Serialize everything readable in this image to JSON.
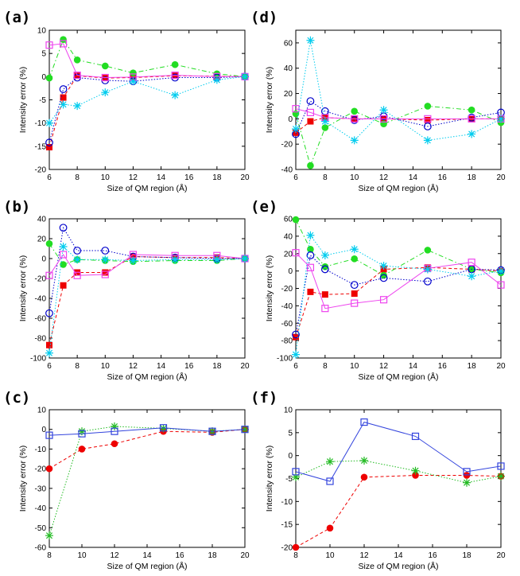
{
  "chart_data": [
    {
      "panel": "(a)",
      "type": "line",
      "xlabel": "Size of QM region (Å)",
      "ylabel": "Intensity error (%)",
      "xlim": [
        6,
        20
      ],
      "ylim": [
        -20,
        10
      ],
      "xticks": [
        6,
        8,
        10,
        12,
        14,
        16,
        18,
        20
      ],
      "yticks": [
        -20,
        -15,
        -10,
        -5,
        0,
        5,
        10
      ],
      "series": [
        {
          "color": "#ee0000",
          "marker": "filled-square",
          "dash": "dashed",
          "x": [
            6,
            7,
            8,
            10,
            12,
            15,
            18,
            20
          ],
          "y": [
            -15.2,
            -4.5,
            0.2,
            -0.3,
            -0.2,
            0.2,
            0.1,
            0
          ]
        },
        {
          "color": "#22dd22",
          "marker": "filled-circle",
          "dash": "dashdot",
          "x": [
            6,
            7,
            8,
            10,
            12,
            15,
            18,
            20
          ],
          "y": [
            -0.3,
            8,
            3.6,
            2.3,
            0.8,
            2.6,
            0.6,
            0
          ]
        },
        {
          "color": "#0000cc",
          "marker": "open-circle",
          "dash": "dotted",
          "x": [
            6,
            7,
            8,
            10,
            12,
            15,
            18,
            20
          ],
          "y": [
            -14.2,
            -2.7,
            -0.2,
            -0.8,
            -1,
            -0.2,
            -0.2,
            0
          ]
        },
        {
          "color": "#ee44ee",
          "marker": "open-square",
          "dash": "solid",
          "x": [
            6,
            7,
            8,
            10,
            12,
            15,
            18,
            20
          ],
          "y": [
            6.8,
            7.1,
            0.3,
            -0.2,
            -0.1,
            0.3,
            0,
            0
          ]
        },
        {
          "color": "#00ccee",
          "marker": "asterisk",
          "dash": "dotted",
          "x": [
            6,
            7,
            8,
            10,
            12,
            15,
            18,
            20
          ],
          "y": [
            -10,
            -6,
            -6.3,
            -3.4,
            -1,
            -4,
            -0.7,
            0
          ]
        }
      ]
    },
    {
      "panel": "(d)",
      "type": "line",
      "xlabel": "Size of QM region (Å)",
      "ylabel": "Intensity error (%)",
      "xlim": [
        6,
        20
      ],
      "ylim": [
        -40,
        70
      ],
      "xticks": [
        6,
        8,
        10,
        12,
        14,
        16,
        18,
        20
      ],
      "yticks": [
        -40,
        -20,
        0,
        20,
        40,
        60
      ],
      "series": [
        {
          "color": "#ee0000",
          "marker": "filled-square",
          "dash": "dashed",
          "x": [
            6,
            7,
            8,
            10,
            12,
            15,
            18,
            20
          ],
          "y": [
            -11,
            -2,
            1,
            0,
            0,
            -1,
            0,
            0
          ]
        },
        {
          "color": "#22dd22",
          "marker": "filled-circle",
          "dash": "dashdot",
          "x": [
            6,
            7,
            8,
            10,
            12,
            15,
            18,
            20
          ],
          "y": [
            4,
            -37,
            -7,
            6,
            -4,
            10,
            7,
            -3
          ]
        },
        {
          "color": "#0000cc",
          "marker": "open-circle",
          "dash": "dotted",
          "x": [
            6,
            7,
            8,
            10,
            12,
            15,
            18,
            20
          ],
          "y": [
            -12,
            14,
            6,
            -1,
            2,
            -6,
            1,
            5
          ]
        },
        {
          "color": "#ee44ee",
          "marker": "open-square",
          "dash": "solid",
          "x": [
            6,
            7,
            8,
            10,
            12,
            15,
            18,
            20
          ],
          "y": [
            8,
            5,
            1,
            0,
            0,
            0,
            0,
            0
          ]
        },
        {
          "color": "#00ccee",
          "marker": "asterisk",
          "dash": "dotted",
          "x": [
            6,
            7,
            8,
            10,
            12,
            15,
            18,
            20
          ],
          "y": [
            -8,
            62,
            -2,
            -17,
            7,
            -17,
            -12,
            0
          ]
        }
      ]
    },
    {
      "panel": "(b)",
      "type": "line",
      "xlabel": "Size of QM region (Å)",
      "ylabel": "Intensity error (%)",
      "xlim": [
        6,
        20
      ],
      "ylim": [
        -100,
        40
      ],
      "xticks": [
        6,
        8,
        10,
        12,
        14,
        16,
        18,
        20
      ],
      "yticks": [
        -100,
        -80,
        -60,
        -40,
        -20,
        0,
        20,
        40
      ],
      "series": [
        {
          "color": "#ee0000",
          "marker": "filled-square",
          "dash": "dashed",
          "x": [
            6,
            7,
            8,
            10,
            12,
            15,
            18,
            20
          ],
          "y": [
            -87,
            -27,
            -14,
            -14,
            2,
            1,
            1,
            0
          ]
        },
        {
          "color": "#22dd22",
          "marker": "filled-circle",
          "dash": "dashdot",
          "x": [
            6,
            7,
            8,
            10,
            12,
            15,
            18,
            20
          ],
          "y": [
            15,
            -6,
            -1,
            -2,
            -3,
            -2,
            -2,
            0
          ]
        },
        {
          "color": "#0000cc",
          "marker": "open-circle",
          "dash": "dotted",
          "x": [
            6,
            7,
            8,
            10,
            12,
            15,
            18,
            20
          ],
          "y": [
            -55,
            31,
            8,
            8,
            2,
            1,
            0,
            0
          ]
        },
        {
          "color": "#ee44ee",
          "marker": "open-square",
          "dash": "solid",
          "x": [
            6,
            7,
            8,
            10,
            12,
            15,
            18,
            20
          ],
          "y": [
            -17,
            4,
            -17,
            -16,
            4,
            3,
            3,
            0
          ]
        },
        {
          "color": "#00ccee",
          "marker": "asterisk",
          "dash": "dotted",
          "x": [
            6,
            7,
            8,
            10,
            12,
            15,
            18,
            20
          ],
          "y": [
            -95,
            12,
            -1,
            -1,
            -2,
            -1,
            -1,
            0
          ]
        }
      ]
    },
    {
      "panel": "(e)",
      "type": "line",
      "xlabel": "Size of QM region (Å)",
      "ylabel": "Intensity error (%)",
      "xlim": [
        6,
        20
      ],
      "ylim": [
        -100,
        60
      ],
      "xticks": [
        6,
        8,
        10,
        12,
        14,
        16,
        18,
        20
      ],
      "yticks": [
        -100,
        -80,
        -60,
        -40,
        -20,
        0,
        20,
        40,
        60
      ],
      "series": [
        {
          "color": "#ee0000",
          "marker": "filled-square",
          "dash": "dashed",
          "x": [
            6,
            7,
            8,
            10,
            12,
            15,
            18,
            20
          ],
          "y": [
            -76,
            -24,
            -27,
            -26,
            2,
            4,
            2,
            0
          ]
        },
        {
          "color": "#22dd22",
          "marker": "filled-circle",
          "dash": "dashdot",
          "x": [
            6,
            7,
            8,
            10,
            12,
            15,
            18,
            20
          ],
          "y": [
            59,
            25,
            5,
            14,
            -5,
            24,
            2,
            -2
          ]
        },
        {
          "color": "#0000cc",
          "marker": "open-circle",
          "dash": "dotted",
          "x": [
            6,
            7,
            8,
            10,
            12,
            15,
            18,
            20
          ],
          "y": [
            -73,
            18,
            2,
            -16,
            -8,
            -12,
            2,
            1
          ]
        },
        {
          "color": "#ee44ee",
          "marker": "open-square",
          "dash": "solid",
          "x": [
            6,
            7,
            8,
            10,
            12,
            15,
            18,
            20
          ],
          "y": [
            21,
            4,
            -43,
            -37,
            -33,
            3,
            10,
            -16
          ]
        },
        {
          "color": "#00ccee",
          "marker": "asterisk",
          "dash": "dotted",
          "x": [
            6,
            7,
            8,
            10,
            12,
            15,
            18,
            20
          ],
          "y": [
            -96,
            41,
            18,
            25,
            6,
            2,
            -6,
            0
          ]
        }
      ]
    },
    {
      "panel": "(c)",
      "type": "line",
      "xlabel": "Size of QM region (Å)",
      "ylabel": "Intensity error (%)",
      "xlim": [
        8,
        20
      ],
      "ylim": [
        -60,
        10
      ],
      "xticks": [
        8,
        10,
        12,
        14,
        16,
        18,
        20
      ],
      "yticks": [
        -60,
        -50,
        -40,
        -30,
        -20,
        -10,
        0,
        10
      ],
      "series": [
        {
          "color": "#ee0000",
          "marker": "filled-circle",
          "dash": "dashed",
          "x": [
            8,
            10,
            12,
            15,
            18,
            20
          ],
          "y": [
            -20,
            -10,
            -7.3,
            -1,
            -1.5,
            0
          ]
        },
        {
          "color": "#22bb22",
          "marker": "asterisk",
          "dash": "dotted",
          "x": [
            8,
            10,
            12,
            15,
            18,
            20
          ],
          "y": [
            -54,
            -1,
            1.5,
            0.5,
            -1,
            0
          ]
        },
        {
          "color": "#3344dd",
          "marker": "open-square",
          "dash": "solid",
          "x": [
            8,
            10,
            12,
            15,
            18,
            20
          ],
          "y": [
            -3,
            -2.2,
            -1,
            0.8,
            -1,
            0
          ]
        }
      ]
    },
    {
      "panel": "(f)",
      "type": "line",
      "xlabel": "Size of QM region (Å)",
      "ylabel": "Intensity error (%)",
      "xlim": [
        8,
        20
      ],
      "ylim": [
        -20,
        10
      ],
      "xticks": [
        8,
        10,
        12,
        14,
        16,
        18,
        20
      ],
      "yticks": [
        -20,
        -15,
        -10,
        -5,
        0,
        5,
        10
      ],
      "series": [
        {
          "color": "#ee0000",
          "marker": "filled-circle",
          "dash": "dashed",
          "x": [
            8,
            10,
            12,
            15,
            18,
            20
          ],
          "y": [
            -20,
            -15.8,
            -4.7,
            -4.3,
            -4.3,
            -4.5
          ]
        },
        {
          "color": "#22bb22",
          "marker": "asterisk",
          "dash": "dotted",
          "x": [
            8,
            10,
            12,
            15,
            18,
            20
          ],
          "y": [
            -4.7,
            -1.3,
            -1.1,
            -3.3,
            -5.9,
            -4.5
          ]
        },
        {
          "color": "#3344dd",
          "marker": "open-square",
          "dash": "solid",
          "x": [
            8,
            10,
            12,
            15,
            18,
            20
          ],
          "y": [
            -3.5,
            -5.6,
            7.3,
            4.2,
            -3.5,
            -2.3
          ]
        }
      ]
    }
  ]
}
